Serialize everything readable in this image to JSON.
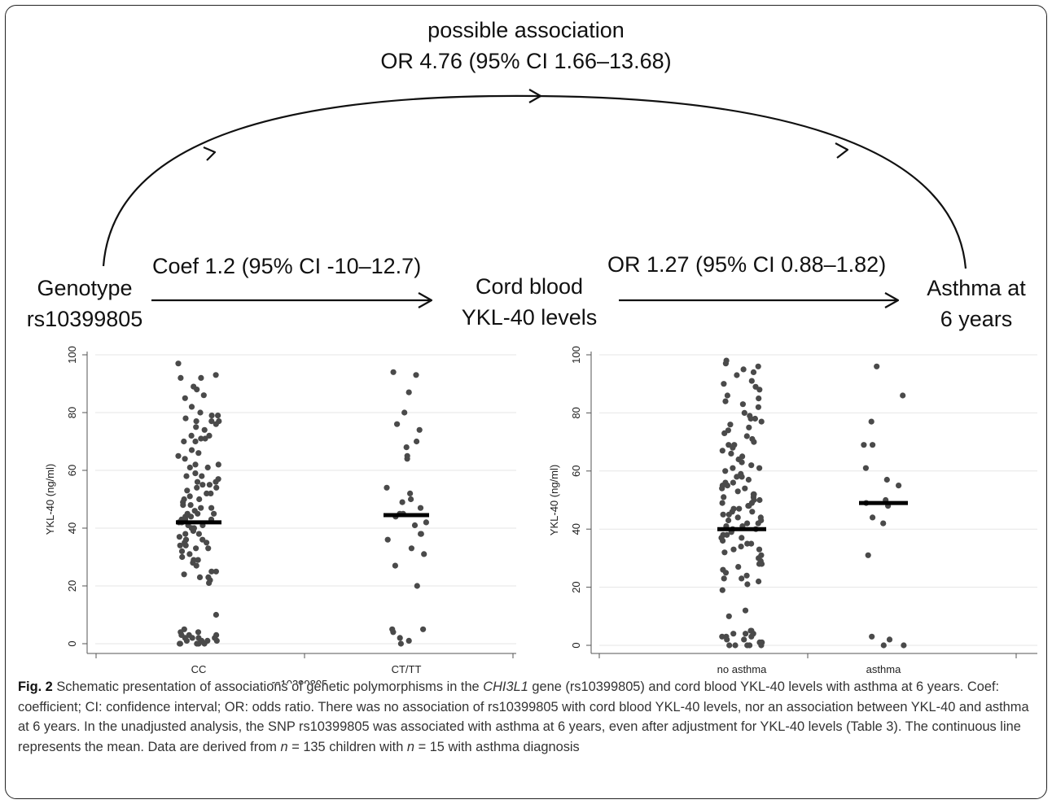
{
  "diagram": {
    "top_label_line1": "possible association",
    "top_label_line2": "OR 4.76 (95% CI 1.66–13.68)",
    "node_genotype_line1": "Genotype",
    "node_genotype_line2": "rs10399805",
    "node_cord_line1": "Cord blood",
    "node_cord_line2": "YKL-40 levels",
    "node_asthma_line1": "Asthma at",
    "node_asthma_line2": "6 years",
    "edge_left_label": "Coef 1.2 (95% CI -10–12.7)",
    "edge_right_label": "OR 1.27 (95% CI 0.88–1.82)"
  },
  "chart_data": [
    {
      "type": "scatter",
      "ylabel": "YKL-40 (ng/ml)",
      "xlabel": "rs10399805",
      "categories": [
        "CC",
        "CT/TT"
      ],
      "ylim": [
        0,
        100
      ],
      "yticks": [
        0,
        20,
        40,
        60,
        80,
        100
      ],
      "grid": true,
      "means": [
        42,
        44.5
      ],
      "points": [
        [
          97,
          93,
          92,
          92,
          89,
          88,
          86,
          85,
          82,
          80,
          79,
          79,
          78,
          77,
          77,
          77,
          76,
          75,
          74,
          72,
          72,
          71,
          71,
          70,
          70,
          67,
          66,
          65,
          64,
          62,
          62,
          61,
          61,
          59,
          58,
          58,
          57,
          56,
          56,
          55,
          55,
          54,
          54,
          53,
          52,
          52,
          51,
          50,
          50,
          49,
          48,
          48,
          47,
          47,
          46,
          45,
          45,
          45,
          44,
          44,
          43,
          43,
          43,
          42,
          42,
          42,
          41,
          41,
          40,
          40,
          39,
          38,
          38,
          37,
          36,
          36,
          35,
          35,
          34,
          34,
          33,
          33,
          32,
          31,
          30,
          29,
          29,
          28,
          27,
          25,
          25,
          24,
          23,
          23,
          22,
          21,
          10,
          5,
          4,
          4,
          3,
          3,
          3,
          2,
          2,
          2,
          2,
          1,
          1,
          1,
          1,
          0,
          0,
          0,
          0,
          0
        ],
        [
          94,
          93,
          87,
          80,
          76,
          74,
          70,
          68,
          65,
          64,
          54,
          52,
          50,
          49,
          47,
          45,
          45,
          44,
          42,
          41,
          38,
          38,
          36,
          33,
          31,
          27,
          20,
          5,
          5,
          4,
          2,
          1,
          0
        ]
      ]
    },
    {
      "type": "scatter",
      "ylabel": "YKL-40 (ng/ml)",
      "xlabel": "",
      "categories": [
        "no asthma",
        "asthma"
      ],
      "ylim": [
        0,
        100
      ],
      "yticks": [
        0,
        20,
        40,
        60,
        80,
        100
      ],
      "grid": true,
      "means": [
        40,
        49
      ],
      "points": [
        [
          98,
          97,
          96,
          95,
          94,
          93,
          91,
          90,
          89,
          88,
          86,
          85,
          84,
          83,
          82,
          80,
          79,
          78,
          78,
          77,
          76,
          75,
          74,
          73,
          72,
          71,
          70,
          69,
          69,
          68,
          67,
          66,
          65,
          64,
          63,
          62,
          61,
          61,
          60,
          59,
          58,
          58,
          57,
          56,
          56,
          55,
          55,
          54,
          54,
          53,
          52,
          52,
          51,
          51,
          50,
          50,
          49,
          49,
          48,
          48,
          47,
          47,
          46,
          46,
          45,
          45,
          44,
          44,
          43,
          43,
          42,
          42,
          41,
          41,
          40,
          40,
          39,
          38,
          38,
          37,
          37,
          36,
          35,
          35,
          34,
          33,
          33,
          32,
          31,
          30,
          29,
          28,
          28,
          27,
          26,
          25,
          24,
          23,
          23,
          22,
          21,
          19,
          12,
          10,
          5,
          5,
          4,
          4,
          4,
          3,
          3,
          3,
          2,
          2,
          1,
          1,
          0,
          0,
          0,
          0,
          0
        ],
        [
          96,
          86,
          77,
          69,
          69,
          61,
          57,
          55,
          50,
          49,
          48,
          44,
          42,
          31,
          3,
          2,
          0,
          0
        ]
      ]
    }
  ]
}
